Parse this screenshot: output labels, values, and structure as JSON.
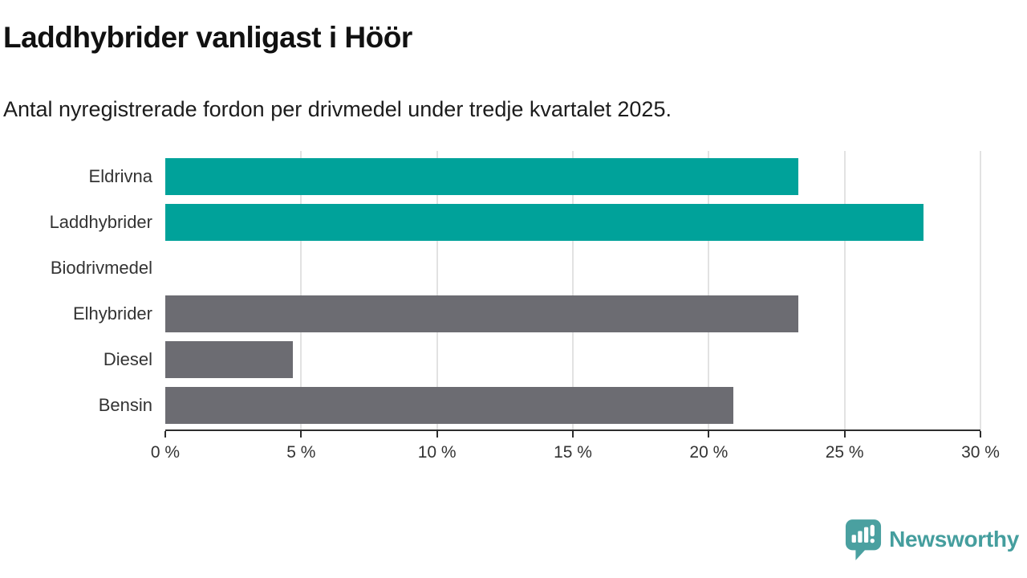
{
  "header": {
    "title": "Laddhybrider vanligast i Höör",
    "subtitle": "Antal nyregistrerade fordon per drivmedel under tredje kvartalet 2025."
  },
  "chart_data": {
    "type": "bar",
    "orientation": "horizontal",
    "title": "Laddhybrider vanligast i Höör",
    "subtitle": "Antal nyregistrerade fordon per drivmedel under tredje kvartalet 2025.",
    "categories": [
      "Eldrivna",
      "Laddhybrider",
      "Biodrivmedel",
      "Elhybrider",
      "Diesel",
      "Bensin"
    ],
    "values": [
      23.3,
      27.9,
      0,
      23.3,
      4.7,
      20.9
    ],
    "unit": "%",
    "xlim": [
      0,
      30
    ],
    "x_ticks": [
      "0 %",
      "5 %",
      "10 %",
      "15 %",
      "20 %",
      "25 %",
      "30 %"
    ],
    "grid": "vertical-only",
    "legend": "none",
    "bar_colors": [
      "#00a29a",
      "#00a29a",
      "#6c6c72",
      "#6c6c72",
      "#6c6c72",
      "#6c6c72"
    ],
    "highlight_color": "#00a29a",
    "default_color": "#6c6c72",
    "gridline_color": "#e2e2e2",
    "axis_color": "#2d2d2d"
  },
  "footer": {
    "brand": "Newsworthy",
    "brand_color": "#459e9e",
    "logo_color": "#4aa0a0"
  }
}
